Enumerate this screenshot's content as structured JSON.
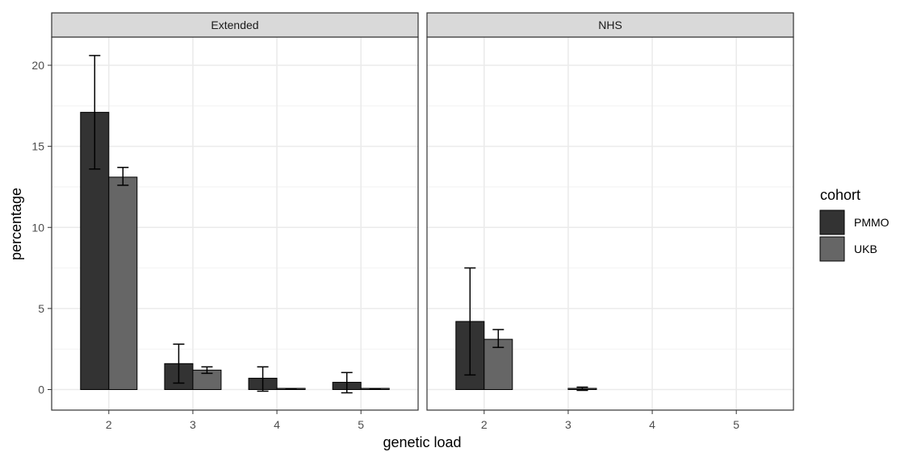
{
  "chart_data": {
    "type": "bar",
    "xlabel": "genetic load",
    "ylabel": "percentage",
    "ylim": [
      -1.4,
      22.4
    ],
    "yticks": [
      0,
      5,
      10,
      15,
      20
    ],
    "xlim": [
      1.32,
      5.68
    ],
    "xticks": [
      2,
      3,
      4,
      5
    ],
    "grid": true,
    "legend": {
      "title": "cohort",
      "position": "right",
      "entries": [
        {
          "name": "PMMO",
          "color": "#333333"
        },
        {
          "name": "UKB",
          "color": "#666666"
        }
      ]
    },
    "facets": [
      {
        "label": "Extended",
        "series": [
          {
            "name": "PMMO",
            "color": "#333333",
            "points": [
              {
                "x": 2,
                "y": 17.1,
                "err_low": 13.6,
                "err_high": 20.6
              },
              {
                "x": 3,
                "y": 1.6,
                "err_low": 0.4,
                "err_high": 2.8
              },
              {
                "x": 4,
                "y": 0.7,
                "err_low": -0.1,
                "err_high": 1.4
              },
              {
                "x": 5,
                "y": 0.45,
                "err_low": -0.2,
                "err_high": 1.05
              }
            ]
          },
          {
            "name": "UKB",
            "color": "#666666",
            "points": [
              {
                "x": 2,
                "y": 13.1,
                "err_low": 12.6,
                "err_high": 13.7
              },
              {
                "x": 3,
                "y": 1.2,
                "err_low": 1.0,
                "err_high": 1.4
              },
              {
                "x": 4,
                "y": 0.05,
                "err_low": 0.04,
                "err_high": 0.06
              },
              {
                "x": 5,
                "y": 0.03,
                "err_low": 0.02,
                "err_high": 0.04
              }
            ]
          }
        ]
      },
      {
        "label": "NHS",
        "series": [
          {
            "name": "PMMO",
            "color": "#333333",
            "points": [
              {
                "x": 2,
                "y": 4.2,
                "err_low": 0.9,
                "err_high": 7.5
              },
              {
                "x": 3,
                "y": 0.0,
                "err_low": 0.0,
                "err_high": 0.0
              },
              {
                "x": 4,
                "y": 0.0,
                "err_low": 0.0,
                "err_high": 0.0
              },
              {
                "x": 5,
                "y": 0.0,
                "err_low": 0.0,
                "err_high": 0.0
              }
            ]
          },
          {
            "name": "UKB",
            "color": "#666666",
            "points": [
              {
                "x": 2,
                "y": 3.1,
                "err_low": 2.6,
                "err_high": 3.7
              },
              {
                "x": 3,
                "y": 0.05,
                "err_low": -0.05,
                "err_high": 0.15
              },
              {
                "x": 4,
                "y": 0.0,
                "err_low": 0.0,
                "err_high": 0.0
              },
              {
                "x": 5,
                "y": 0.0,
                "err_low": 0.0,
                "err_high": 0.0
              }
            ]
          }
        ]
      }
    ]
  }
}
